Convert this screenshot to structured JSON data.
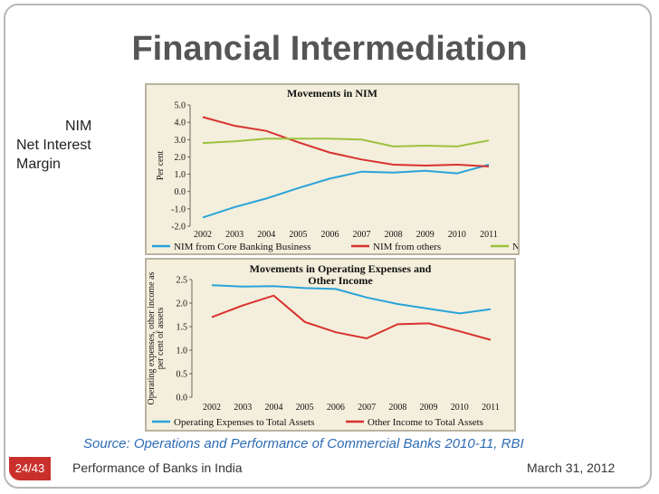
{
  "slide": {
    "title": "Financial Intermediation",
    "side_label_line1": "NIM",
    "side_label_line2": "Net Interest",
    "side_label_line3": "Margin",
    "source": "Source: Operations and Performance of Commercial Banks 2010-11, RBI",
    "slide_number": "24/43",
    "footer_text": "Performance of Banks in India",
    "footer_date": "March 31, 2012"
  },
  "colors": {
    "blue": "#29a3d9",
    "red": "#d9322e",
    "green": "#9dc23e"
  },
  "chart_data": [
    {
      "type": "line",
      "title": "Movements in NIM",
      "ylabel": "Per cent",
      "xlabel": "",
      "ylim": [
        -2.0,
        5.0
      ],
      "yticks": [
        "5.0",
        "4.0",
        "3.0",
        "2.0",
        "1.0",
        "0.0",
        "-1.0",
        "-2.0"
      ],
      "ytick_values": [
        5,
        4,
        3,
        2,
        1,
        0,
        -1,
        -2
      ],
      "categories": [
        "2002",
        "2003",
        "2004",
        "2005",
        "2006",
        "2007",
        "2008",
        "2009",
        "2010",
        "2011"
      ],
      "series": [
        {
          "name": "NIM from Core Banking Business",
          "color": "#29a3d9",
          "values": [
            -1.5,
            -0.9,
            -0.4,
            0.2,
            0.75,
            1.15,
            1.1,
            1.2,
            1.05,
            1.55
          ]
        },
        {
          "name": "NIM from others",
          "color": "#d9322e",
          "values": [
            4.3,
            3.8,
            3.5,
            2.85,
            2.25,
            1.85,
            1.55,
            1.5,
            1.55,
            1.45
          ]
        },
        {
          "name": "NIM",
          "color": "#9dc23e",
          "values": [
            2.8,
            2.9,
            3.05,
            3.05,
            3.05,
            3.0,
            2.6,
            2.65,
            2.6,
            2.95
          ]
        }
      ]
    },
    {
      "type": "line",
      "title": "Movements in Operating Expenses and",
      "title_line2": "Other Income",
      "ylabel": "Operating expenses, other income as",
      "ylabel_line2": "per cent of assets",
      "xlabel": "",
      "ylim": [
        0.0,
        2.5
      ],
      "yticks": [
        "2.5",
        "2.0",
        "1.5",
        "1.0",
        "0.5",
        "0.0"
      ],
      "ytick_values": [
        2.5,
        2.0,
        1.5,
        1.0,
        0.5,
        0.0
      ],
      "categories": [
        "2002",
        "2003",
        "2004",
        "2005",
        "2006",
        "2007",
        "2008",
        "2009",
        "2010",
        "2011"
      ],
      "series": [
        {
          "name": "Operating Expenses to Total Assets",
          "color": "#29a3d9",
          "values": [
            2.38,
            2.35,
            2.36,
            2.32,
            2.3,
            2.12,
            1.98,
            1.88,
            1.78,
            1.87
          ]
        },
        {
          "name": "Other Income to Total Assets",
          "color": "#d9322e",
          "values": [
            1.7,
            1.95,
            2.16,
            1.6,
            1.38,
            1.25,
            1.55,
            1.57,
            1.4,
            1.22
          ]
        }
      ]
    }
  ]
}
